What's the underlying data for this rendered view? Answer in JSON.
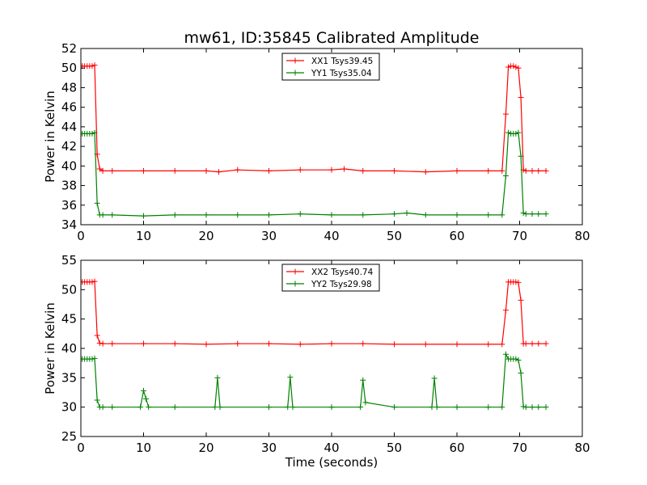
{
  "figure": {
    "title": "mw61, ID:35845 Calibrated Amplitude"
  },
  "chart_data": [
    {
      "type": "line",
      "title": "mw61, ID:35845 Calibrated Amplitude",
      "xlabel": "",
      "ylabel": "Power in Kelvin",
      "xlim": [
        0,
        80
      ],
      "ylim": [
        34,
        52
      ],
      "xticks": [
        "0",
        "10",
        "20",
        "30",
        "40",
        "50",
        "60",
        "70",
        "80"
      ],
      "yticks": [
        "34",
        "36",
        "38",
        "40",
        "42",
        "44",
        "46",
        "48",
        "50",
        "52"
      ],
      "grid": false,
      "legend_position": "top-center",
      "series": [
        {
          "name": "XX1 Tsys39.45",
          "color": "#ff0000",
          "x": [
            0.2,
            0.6,
            1.0,
            1.4,
            1.8,
            2.2,
            2.6,
            3.0,
            3.5,
            5,
            10,
            15,
            20,
            22,
            25,
            30,
            35,
            40,
            42,
            45,
            50,
            55,
            60,
            65,
            67.2,
            67.8,
            68.2,
            68.6,
            69.0,
            69.4,
            69.8,
            70.2,
            70.6,
            71.0,
            72,
            73,
            74.2
          ],
          "y": [
            50.2,
            50.2,
            50.2,
            50.2,
            50.2,
            50.3,
            41.2,
            39.7,
            39.5,
            39.5,
            39.5,
            39.5,
            39.5,
            39.4,
            39.6,
            39.5,
            39.6,
            39.6,
            39.7,
            39.5,
            39.5,
            39.4,
            39.5,
            39.5,
            39.5,
            45.3,
            50.1,
            50.2,
            50.2,
            50.1,
            50.0,
            47.0,
            39.6,
            39.5,
            39.5,
            39.5,
            39.5
          ]
        },
        {
          "name": "YY1 Tsys35.04",
          "color": "#008000",
          "x": [
            0.2,
            0.6,
            1.0,
            1.4,
            1.8,
            2.2,
            2.6,
            3.0,
            3.5,
            5,
            10,
            15,
            20,
            25,
            30,
            35,
            40,
            45,
            50,
            52,
            55,
            60,
            65,
            67.2,
            67.8,
            68.2,
            68.6,
            69.0,
            69.4,
            69.8,
            70.2,
            70.6,
            71.0,
            72,
            73,
            74.2
          ],
          "y": [
            43.3,
            43.3,
            43.3,
            43.3,
            43.3,
            43.4,
            36.2,
            35.0,
            35.0,
            35.0,
            34.9,
            35.0,
            35.0,
            35.0,
            35.0,
            35.1,
            35.0,
            35.0,
            35.1,
            35.2,
            35.0,
            35.0,
            35.0,
            35.0,
            39.0,
            43.4,
            43.3,
            43.3,
            43.3,
            43.4,
            41.0,
            35.2,
            35.1,
            35.1,
            35.1,
            35.1
          ]
        }
      ]
    },
    {
      "type": "line",
      "title": "",
      "xlabel": "Time (seconds)",
      "ylabel": "Power in Kelvin",
      "xlim": [
        0,
        80
      ],
      "ylim": [
        25,
        55
      ],
      "xticks": [
        "0",
        "10",
        "20",
        "30",
        "40",
        "50",
        "60",
        "70",
        "80"
      ],
      "yticks": [
        "25",
        "30",
        "35",
        "40",
        "45",
        "50",
        "55"
      ],
      "grid": false,
      "legend_position": "top-center",
      "series": [
        {
          "name": "XX2 Tsys40.74",
          "color": "#ff0000",
          "x": [
            0.2,
            0.6,
            1.0,
            1.4,
            1.8,
            2.2,
            2.6,
            3.0,
            3.5,
            5,
            10,
            15,
            20,
            25,
            30,
            35,
            40,
            45,
            50,
            55,
            60,
            65,
            67.2,
            67.8,
            68.2,
            68.6,
            69.0,
            69.4,
            69.8,
            70.2,
            70.6,
            71.0,
            72,
            73,
            74.2
          ],
          "y": [
            51.3,
            51.3,
            51.3,
            51.3,
            51.3,
            51.4,
            42.2,
            40.9,
            40.8,
            40.8,
            40.8,
            40.8,
            40.7,
            40.8,
            40.8,
            40.7,
            40.8,
            40.8,
            40.7,
            40.7,
            40.7,
            40.7,
            40.7,
            46.5,
            51.3,
            51.3,
            51.3,
            51.3,
            51.2,
            48.2,
            40.8,
            40.8,
            40.8,
            40.8,
            40.8
          ]
        },
        {
          "name": "YY2 Tsys29.98",
          "color": "#008000",
          "x": [
            0.2,
            0.6,
            1.0,
            1.4,
            1.8,
            2.2,
            2.6,
            3.0,
            3.5,
            5,
            9.5,
            10.0,
            10.4,
            10.8,
            15,
            21.4,
            21.8,
            22.2,
            30,
            33.0,
            33.4,
            33.8,
            40,
            44.6,
            45.0,
            45.4,
            50,
            56.0,
            56.4,
            56.8,
            60,
            65,
            67.2,
            67.8,
            68.2,
            68.6,
            69.0,
            69.4,
            69.8,
            70.2,
            70.6,
            71.0,
            72,
            73,
            74.2
          ],
          "y": [
            38.2,
            38.2,
            38.2,
            38.2,
            38.2,
            38.3,
            31.2,
            30.0,
            30.0,
            30.0,
            30.0,
            32.8,
            31.4,
            30.0,
            30.0,
            30.0,
            35.0,
            30.0,
            30.0,
            30.0,
            35.1,
            30.0,
            30.0,
            30.0,
            34.6,
            30.8,
            30.0,
            30.0,
            34.9,
            30.0,
            30.0,
            30.0,
            30.0,
            39.0,
            38.2,
            38.2,
            38.2,
            38.2,
            38.0,
            35.8,
            30.1,
            30.0,
            30.0,
            30.0,
            30.0
          ]
        }
      ]
    }
  ]
}
